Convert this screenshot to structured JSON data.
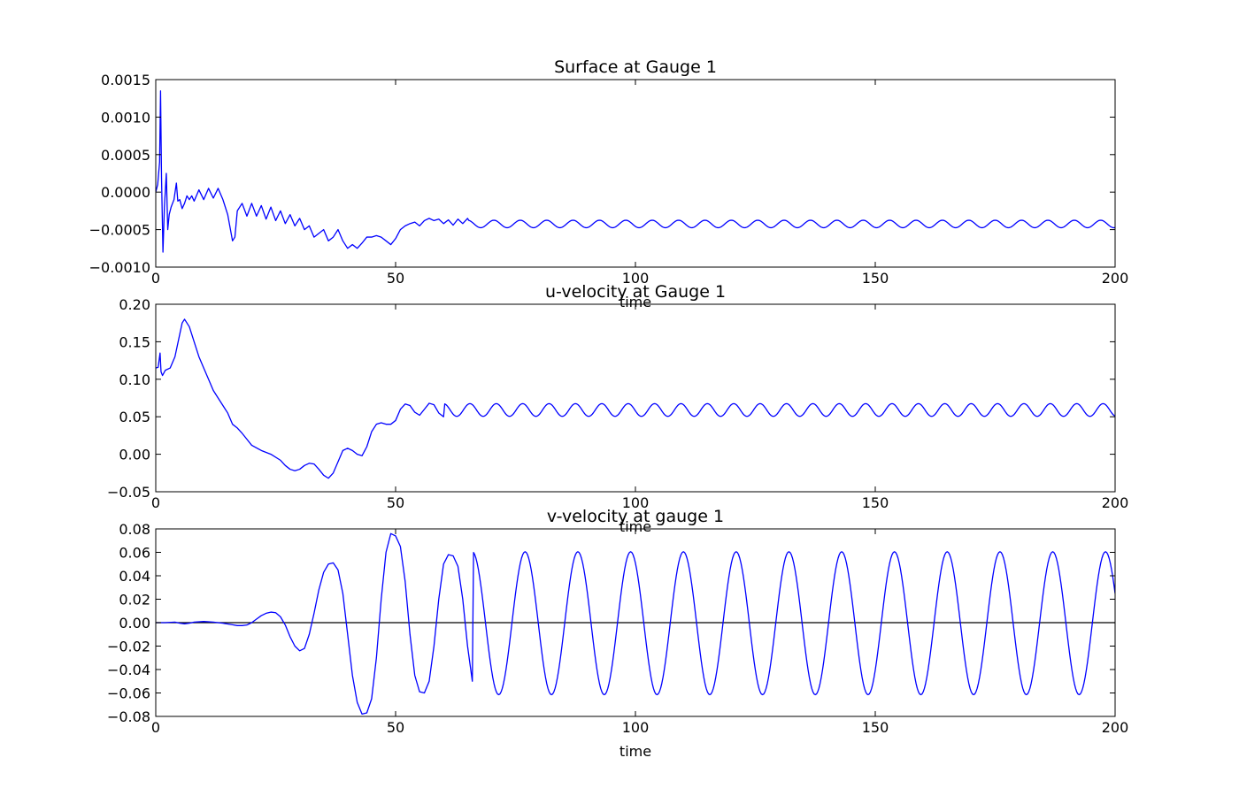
{
  "colors": {
    "series": "#0000ff",
    "axis": "#000000",
    "zero_line": "#000000",
    "background": "#ffffff"
  },
  "chart_data": [
    {
      "type": "line",
      "title": "Surface at Gauge 1",
      "xlabel": "time",
      "ylabel": "",
      "xlim": [
        0,
        200
      ],
      "ylim": [
        -0.001,
        0.0015
      ],
      "xticks": [
        "0",
        "50",
        "100",
        "150",
        "200"
      ],
      "yticks": [
        "−0.0010",
        "−0.0005",
        "0.0000",
        "0.0005",
        "0.0010",
        "0.0015"
      ],
      "grid": false,
      "series": [
        {
          "x": [
            0,
            0.4,
            0.8,
            1.0,
            1.2,
            1.5,
            1.8,
            2.2,
            2.5,
            2.8,
            3.2,
            3.8,
            4.3,
            4.6,
            5.0,
            5.5,
            6.0,
            6.5,
            7.0,
            7.5,
            8.0,
            9.0,
            10.0,
            11.0,
            12.0,
            13.0,
            14.0,
            15.0,
            16.0,
            16.5,
            17.0,
            18.0,
            19.0,
            20.0,
            21.0,
            22.0,
            23.0,
            24.0,
            25.0,
            26.0,
            27.0,
            28.0,
            29.0,
            30.0,
            31.0,
            32.0,
            33.0,
            34.0,
            35.0,
            36.0,
            37.0,
            38.0,
            39.0,
            40.0,
            41.0,
            42.0,
            43.0,
            44.0,
            45.0,
            46.0,
            47.0,
            48.0,
            49.0,
            50.0,
            51.0,
            52.0,
            53.0,
            54.0,
            55.0,
            56.0,
            57.0,
            58.0,
            59.0,
            60.0,
            61.0,
            62.0,
            63.0,
            64.0,
            65.0
          ],
          "y": [
            0.0,
            0.0001,
            0.0004,
            0.00135,
            0.0002,
            -0.0008,
            -0.0002,
            0.00025,
            -0.0005,
            -0.0003,
            -0.0002,
            -0.0001,
            0.00012,
            -0.00012,
            -0.0001,
            -0.00022,
            -0.00015,
            -5e-05,
            -0.0001,
            -5e-05,
            -0.00012,
            3e-05,
            -0.0001,
            5e-05,
            -8e-05,
            5e-05,
            -0.0001,
            -0.0003,
            -0.00065,
            -0.0006,
            -0.00025,
            -0.00015,
            -0.00032,
            -0.00015,
            -0.00032,
            -0.00018,
            -0.00036,
            -0.0002,
            -0.00038,
            -0.00025,
            -0.00042,
            -0.0003,
            -0.00045,
            -0.00035,
            -0.0005,
            -0.00045,
            -0.0006,
            -0.00055,
            -0.0005,
            -0.00065,
            -0.0006,
            -0.0005,
            -0.00065,
            -0.00075,
            -0.0007,
            -0.00075,
            -0.00068,
            -0.0006,
            -0.0006,
            -0.00058,
            -0.0006,
            -0.00065,
            -0.0007,
            -0.00062,
            -0.0005,
            -0.00045,
            -0.00042,
            -0.0004,
            -0.00045,
            -0.00038,
            -0.00035,
            -0.00038,
            -0.00036,
            -0.00042,
            -0.00037,
            -0.00044,
            -0.00036,
            -0.00042,
            -0.00035
          ],
          "continuation": {
            "from": 65,
            "to": 200,
            "mean": -0.000425,
            "amplitude": 5e-05,
            "period": 5.5
          }
        }
      ]
    },
    {
      "type": "line",
      "title": "u-velocity at Gauge 1",
      "xlabel": "time",
      "ylabel": "",
      "xlim": [
        0,
        200
      ],
      "ylim": [
        -0.05,
        0.2
      ],
      "xticks": [
        "0",
        "50",
        "100",
        "150",
        "200"
      ],
      "yticks": [
        "−0.05",
        "0.00",
        "0.05",
        "0.10",
        "0.15",
        "0.20"
      ],
      "grid": false,
      "series": [
        {
          "x": [
            0,
            0.5,
            0.9,
            1.1,
            1.4,
            2,
            3,
            4,
            5,
            5.5,
            6,
            7,
            8,
            9,
            10,
            11,
            12,
            13,
            14,
            15,
            16,
            17,
            18,
            19,
            20,
            22,
            24,
            26,
            27,
            28,
            29,
            30,
            31,
            32,
            33,
            34,
            35,
            36,
            37,
            38,
            39,
            40,
            41,
            42,
            43,
            44,
            45,
            46,
            47,
            48,
            49,
            50,
            51,
            52,
            53,
            54,
            55,
            56,
            57,
            58,
            59,
            60
          ],
          "y": [
            0.115,
            0.116,
            0.135,
            0.11,
            0.105,
            0.112,
            0.115,
            0.13,
            0.16,
            0.175,
            0.18,
            0.17,
            0.15,
            0.13,
            0.115,
            0.1,
            0.085,
            0.075,
            0.065,
            0.055,
            0.04,
            0.035,
            0.028,
            0.02,
            0.012,
            0.005,
            0.0,
            -0.008,
            -0.015,
            -0.02,
            -0.022,
            -0.02,
            -0.015,
            -0.012,
            -0.013,
            -0.02,
            -0.028,
            -0.032,
            -0.025,
            -0.01,
            0.005,
            0.008,
            0.005,
            0.0,
            -0.002,
            0.01,
            0.03,
            0.04,
            0.042,
            0.04,
            0.04,
            0.045,
            0.06,
            0.067,
            0.065,
            0.056,
            0.052,
            0.06,
            0.068,
            0.066,
            0.055,
            0.05
          ],
          "continuation": {
            "from": 60,
            "to": 200,
            "mean": 0.059,
            "amplitude": 0.0085,
            "period": 5.5
          }
        }
      ]
    },
    {
      "type": "line",
      "title": "v-velocity at gauge 1",
      "xlabel": "time",
      "ylabel": "",
      "xlim": [
        0,
        200
      ],
      "ylim": [
        -0.08,
        0.08
      ],
      "xticks": [
        "0",
        "50",
        "100",
        "150",
        "200"
      ],
      "yticks": [
        "−0.08",
        "−0.06",
        "−0.04",
        "−0.02",
        "0.00",
        "0.02",
        "0.04",
        "0.06",
        "0.08"
      ],
      "grid": false,
      "reference_line_y": 0.0,
      "series": [
        {
          "x": [
            0,
            2,
            4,
            5,
            6,
            7,
            8,
            10,
            12,
            14,
            16,
            17,
            18,
            19,
            20,
            21,
            22,
            23,
            24,
            25,
            26,
            27,
            28,
            29,
            30,
            31,
            32,
            33,
            34,
            35,
            36,
            37,
            38,
            39,
            40,
            41,
            42,
            43,
            44,
            45,
            46,
            47,
            48,
            49,
            50,
            51,
            52,
            53,
            54,
            55,
            56,
            57,
            58,
            59,
            60,
            61,
            62,
            63,
            64,
            65,
            66
          ],
          "y": [
            0.0,
            0.0,
            0.0005,
            -0.0005,
            -0.001,
            -0.0005,
            0.0005,
            0.001,
            0.0005,
            -0.0005,
            -0.0018,
            -0.0025,
            -0.0025,
            -0.002,
            0.0,
            0.003,
            0.006,
            0.008,
            0.009,
            0.0085,
            0.005,
            -0.002,
            -0.012,
            -0.02,
            -0.024,
            -0.022,
            -0.01,
            0.008,
            0.028,
            0.043,
            0.05,
            0.051,
            0.045,
            0.025,
            -0.01,
            -0.045,
            -0.068,
            -0.078,
            -0.077,
            -0.065,
            -0.03,
            0.02,
            0.06,
            0.076,
            0.074,
            0.065,
            0.035,
            -0.01,
            -0.045,
            -0.059,
            -0.06,
            -0.05,
            -0.02,
            0.02,
            0.05,
            0.058,
            0.057,
            0.048,
            0.02,
            -0.02,
            -0.05
          ],
          "continuation": {
            "from": 66,
            "to": 200,
            "mean": -0.0005,
            "amplitude": 0.061,
            "period": 11.0
          }
        }
      ]
    }
  ]
}
